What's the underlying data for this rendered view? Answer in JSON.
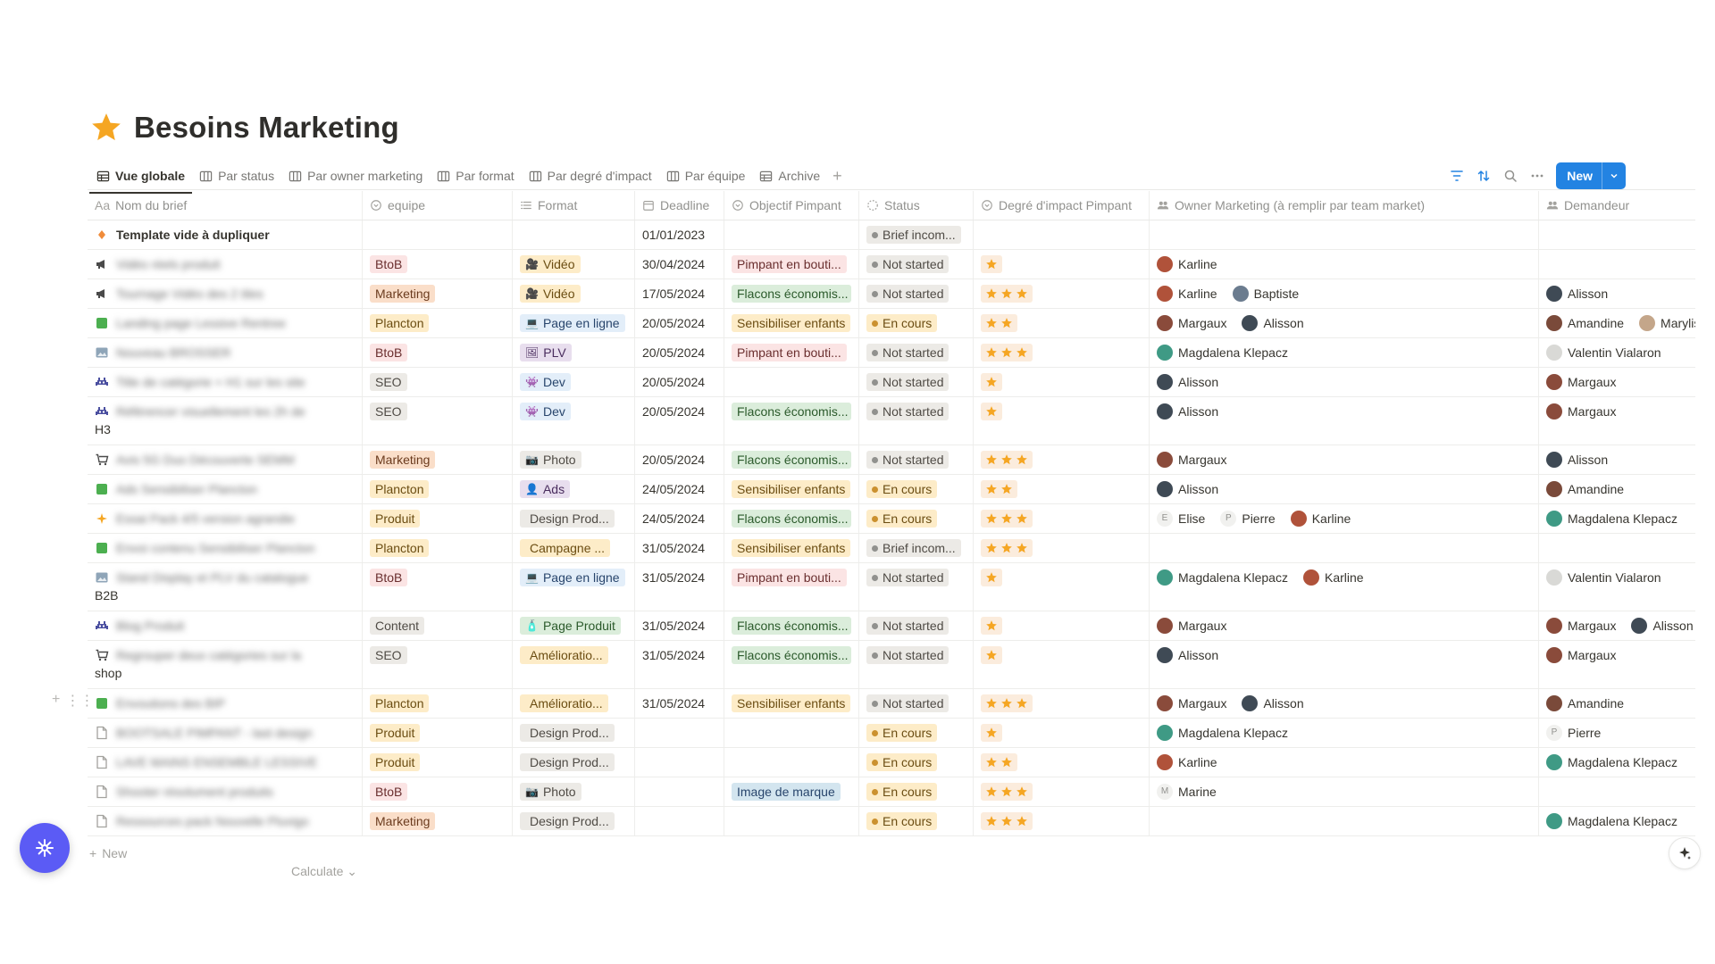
{
  "page": {
    "title": "Besoins Marketing",
    "icon": "star-icon"
  },
  "tabs": [
    {
      "label": "Vue globale",
      "icon": "table-icon",
      "active": true
    },
    {
      "label": "Par status",
      "icon": "board-icon"
    },
    {
      "label": "Par owner marketing",
      "icon": "board-icon"
    },
    {
      "label": "Par format",
      "icon": "board-icon"
    },
    {
      "label": "Par degré d'impact",
      "icon": "board-icon"
    },
    {
      "label": "Par équipe",
      "icon": "board-icon"
    },
    {
      "label": "Archive",
      "icon": "table-icon"
    }
  ],
  "toolbar": {
    "new_label": "New",
    "icons": [
      "filter-icon",
      "sort-icon",
      "search-icon",
      "more-icon"
    ]
  },
  "columns": [
    {
      "label": "Nom du brief",
      "icon": "title-icon",
      "prefix": "Aa"
    },
    {
      "label": "equipe",
      "icon": "select-icon"
    },
    {
      "label": "Format",
      "icon": "list-icon"
    },
    {
      "label": "Deadline",
      "icon": "calendar-icon"
    },
    {
      "label": "Objectif Pimpant",
      "icon": "select-icon"
    },
    {
      "label": "Status",
      "icon": "status-icon"
    },
    {
      "label": "Degré d'impact Pimpant",
      "icon": "select-icon"
    },
    {
      "label": "Owner Marketing (à remplir par team market)",
      "icon": "people-icon"
    },
    {
      "label": "Demandeur",
      "icon": "people-icon"
    }
  ],
  "colors": {
    "accent": "#2383e2",
    "fab": "#5b5bf5",
    "star": "#f5a623"
  },
  "tag_colors": {
    "BtoB": {
      "bg": "#fbe4e4",
      "fg": "#6a2f2f"
    },
    "Marketing": {
      "bg": "#fadec9",
      "fg": "#6b3b1e"
    },
    "Plancton": {
      "bg": "#fdecc8",
      "fg": "#6b4d12"
    },
    "SEO": {
      "bg": "#eceae6",
      "fg": "#4f4b45"
    },
    "Produit": {
      "bg": "#fdecc8",
      "fg": "#6b4d12"
    },
    "Content": {
      "bg": "#eceae6",
      "fg": "#4f4b45"
    },
    "Vidéo": {
      "bg": "#fdecc8",
      "fg": "#6b4d12"
    },
    "Page en ligne": {
      "bg": "#e3eef9",
      "fg": "#28456c"
    },
    "PLV": {
      "bg": "#e8deee",
      "fg": "#4a2d5e"
    },
    "Dev": {
      "bg": "#e3eef9",
      "fg": "#28456c"
    },
    "Photo": {
      "bg": "#eceae6",
      "fg": "#4f4b45"
    },
    "Ads": {
      "bg": "#e8deee",
      "fg": "#4a2d5e"
    },
    "Design Prod...": {
      "bg": "#eceae6",
      "fg": "#4f4b45"
    },
    "Campagne ...": {
      "bg": "#fdecc8",
      "fg": "#6b4d12"
    },
    "Page Produit": {
      "bg": "#dbeddb",
      "fg": "#2b5a2b"
    },
    "Amélioratio...": {
      "bg": "#fdecc8",
      "fg": "#6b4d12"
    },
    "Pimpant en bouti...": {
      "bg": "#fbe4e4",
      "fg": "#6a2f2f"
    },
    "Flacons économis...": {
      "bg": "#dbeddb",
      "fg": "#2b5a2b"
    },
    "Sensibiliser enfants": {
      "bg": "#fdecc8",
      "fg": "#6b4d12"
    },
    "Image de marque": {
      "bg": "#d3e5ef",
      "fg": "#28456c"
    },
    "Brief incom...": {
      "bg": "#eceae6",
      "fg": "#4f4b45",
      "dot": "#91918e"
    },
    "Not started": {
      "bg": "#eceae6",
      "fg": "#4f4b45",
      "dot": "#91918e"
    },
    "En cours": {
      "bg": "#fdecc8",
      "fg": "#6b4d12",
      "dot": "#cb912f"
    }
  },
  "format_emoji": {
    "Vidéo": "🎥",
    "Page en ligne": "💻",
    "PLV": "🖼",
    "Dev": "👾",
    "Photo": "📷",
    "Ads": "👤",
    "Design Prod...": "🖼",
    "Campagne ...": "🔥",
    "Page Produit": "🧴",
    "Amélioratio...": "⭐"
  },
  "rows": [
    {
      "icon": "diamond-icon",
      "name": "Template vide à dupliquer",
      "blur": false,
      "extra": "",
      "equipe": "",
      "format": "",
      "deadline": "01/01/2023",
      "objectif": "",
      "status": "Brief incom...",
      "stars": 0,
      "owners": [],
      "demandeurs": []
    },
    {
      "icon": "megaphone-icon",
      "name": "Vidéo réels produit",
      "blur": true,
      "extra": "",
      "equipe": "BtoB",
      "format": "Vidéo",
      "deadline": "30/04/2024",
      "objectif": "Pimpant en bouti...",
      "status": "Not started",
      "stars": 1,
      "owners": [
        "Karline"
      ],
      "demandeurs": []
    },
    {
      "icon": "megaphone-icon",
      "name": "Tournage Vidéo des 2 tiles",
      "blur": true,
      "extra": "",
      "equipe": "Marketing",
      "format": "Vidéo",
      "deadline": "17/05/2024",
      "objectif": "Flacons économis...",
      "status": "Not started",
      "stars": 3,
      "owners": [
        "Karline",
        "Baptiste"
      ],
      "demandeurs": [
        "Alisson"
      ]
    },
    {
      "icon": "green-square-icon",
      "name": "Landing page Lessive Rentree",
      "blur": true,
      "extra": "",
      "equipe": "Plancton",
      "format": "Page en ligne",
      "deadline": "20/05/2024",
      "objectif": "Sensibiliser enfants",
      "status": "En cours",
      "stars": 2,
      "owners": [
        "Margaux",
        "Alisson"
      ],
      "demandeurs": [
        "Amandine",
        "Marylise"
      ]
    },
    {
      "icon": "picture-icon",
      "name": "Nouveau BROSSER",
      "blur": true,
      "extra": "",
      "equipe": "BtoB",
      "format": "PLV",
      "deadline": "20/05/2024",
      "objectif": "Pimpant en bouti...",
      "status": "Not started",
      "stars": 3,
      "owners": [
        "Magdalena Klepacz"
      ],
      "demandeurs": [
        "Valentin Vialaron"
      ]
    },
    {
      "icon": "alien-icon",
      "name": "Title de catégorie + H1 sur les site",
      "blur": true,
      "extra": "",
      "equipe": "SEO",
      "format": "Dev",
      "deadline": "20/05/2024",
      "objectif": "",
      "status": "Not started",
      "stars": 1,
      "owners": [
        "Alisson"
      ],
      "demandeurs": [
        "Margaux"
      ]
    },
    {
      "icon": "alien-icon",
      "name": "Référencer visuellement les 2h de",
      "blur": true,
      "extra": "H3",
      "equipe": "SEO",
      "format": "Dev",
      "deadline": "20/05/2024",
      "objectif": "Flacons économis...",
      "status": "Not started",
      "stars": 1,
      "owners": [
        "Alisson"
      ],
      "demandeurs": [
        "Margaux"
      ]
    },
    {
      "icon": "cart-icon",
      "name": "Avis 5G Duo Découverte SEMM",
      "blur": true,
      "extra": "",
      "equipe": "Marketing",
      "format": "Photo",
      "deadline": "20/05/2024",
      "objectif": "Flacons économis...",
      "status": "Not started",
      "stars": 3,
      "owners": [
        "Margaux"
      ],
      "demandeurs": [
        "Alisson"
      ]
    },
    {
      "icon": "green-square-icon",
      "name": "Ads Sensibiliser Plancton",
      "blur": true,
      "extra": "",
      "equipe": "Plancton",
      "format": "Ads",
      "deadline": "24/05/2024",
      "objectif": "Sensibiliser enfants",
      "status": "En cours",
      "stars": 2,
      "owners": [
        "Alisson"
      ],
      "demandeurs": [
        "Amandine"
      ]
    },
    {
      "icon": "sparkle-icon",
      "name": "Essai Pack 4/5 version agrandie",
      "blur": true,
      "extra": "",
      "equipe": "Produit",
      "format": "Design Prod...",
      "deadline": "24/05/2024",
      "objectif": "Flacons économis...",
      "status": "En cours",
      "stars": 3,
      "owners": [
        "Elise",
        "Pierre",
        "Karline"
      ],
      "demandeurs": [
        "Magdalena Klepacz"
      ]
    },
    {
      "icon": "green-square-icon",
      "name": "Envoi contenu Sensibiliser Plancton",
      "blur": true,
      "extra": "",
      "equipe": "Plancton",
      "format": "Campagne ...",
      "deadline": "31/05/2024",
      "objectif": "Sensibiliser enfants",
      "status": "Brief incom...",
      "stars": 3,
      "owners": [],
      "demandeurs": []
    },
    {
      "icon": "picture-icon",
      "name": "Stand Display et PLV du catalogue",
      "blur": true,
      "extra": "B2B",
      "equipe": "BtoB",
      "format": "Page en ligne",
      "deadline": "31/05/2024",
      "objectif": "Pimpant en bouti...",
      "status": "Not started",
      "stars": 1,
      "owners": [
        "Magdalena Klepacz",
        "Karline"
      ],
      "demandeurs": [
        "Valentin Vialaron"
      ]
    },
    {
      "icon": "alien-icon",
      "name": "Blog Produit",
      "blur": true,
      "extra": "",
      "equipe": "Content",
      "format": "Page Produit",
      "deadline": "31/05/2024",
      "objectif": "Flacons économis...",
      "status": "Not started",
      "stars": 1,
      "owners": [
        "Margaux"
      ],
      "demandeurs": [
        "Margaux",
        "Alisson"
      ]
    },
    {
      "icon": "cart-icon",
      "name": "Regrouper deux catégories sur la",
      "blur": true,
      "extra": "shop",
      "equipe": "SEO",
      "format": "Amélioratio...",
      "deadline": "31/05/2024",
      "objectif": "Flacons économis...",
      "status": "Not started",
      "stars": 1,
      "owners": [
        "Alisson"
      ],
      "demandeurs": [
        "Margaux"
      ]
    },
    {
      "icon": "green-square-icon",
      "name": "Envoutions des BIP",
      "blur": true,
      "extra": "",
      "equipe": "Plancton",
      "format": "Amélioratio...",
      "deadline": "31/05/2024",
      "objectif": "Sensibiliser enfants",
      "status": "Not started",
      "stars": 3,
      "owners": [
        "Margaux",
        "Alisson"
      ],
      "demandeurs": [
        "Amandine"
      ]
    },
    {
      "icon": "page-icon",
      "name": "BOOTSALE PIMPANT - last design",
      "blur": true,
      "extra": "",
      "equipe": "Produit",
      "format": "Design Prod...",
      "deadline": "",
      "objectif": "",
      "status": "En cours",
      "stars": 1,
      "owners": [
        "Magdalena Klepacz"
      ],
      "demandeurs": [
        "Pierre"
      ]
    },
    {
      "icon": "page-icon",
      "name": "LAVE MAINS ENSEMBLE LESSIVE",
      "blur": true,
      "extra": "",
      "equipe": "Produit",
      "format": "Design Prod...",
      "deadline": "",
      "objectif": "",
      "status": "En cours",
      "stars": 2,
      "owners": [
        "Karline"
      ],
      "demandeurs": [
        "Magdalena Klepacz"
      ]
    },
    {
      "icon": "page-icon",
      "name": "Shooter résolument produits",
      "blur": true,
      "extra": "",
      "equipe": "BtoB",
      "format": "Photo",
      "deadline": "",
      "objectif": "Image de marque",
      "status": "En cours",
      "stars": 3,
      "owners": [
        "Marine"
      ],
      "demandeurs": []
    },
    {
      "icon": "page-icon",
      "name": "Ressources pack Nouvelle Pluvigo",
      "blur": true,
      "extra": "",
      "equipe": "Marketing",
      "format": "Design Prod...",
      "deadline": "",
      "objectif": "",
      "status": "En cours",
      "stars": 3,
      "owners": [],
      "demandeurs": [
        "Magdalena Klepacz"
      ]
    }
  ],
  "people": {
    "Karline": {
      "color": "#b0523a"
    },
    "Baptiste": {
      "color": "#6b7c8f"
    },
    "Alisson": {
      "color": "#3f4a55"
    },
    "Margaux": {
      "color": "#8a4b3b"
    },
    "Amandine": {
      "color": "#7a4a3a"
    },
    "Marylise": {
      "color": "#c4a68a"
    },
    "Magdalena Klepacz": {
      "color": "#3f9a85"
    },
    "Valentin Vialaron": {
      "color": "#d9d9d6"
    },
    "Elise": {
      "letter": "E"
    },
    "Pierre": {
      "letter": "P"
    },
    "Marine": {
      "letter": "M"
    }
  },
  "footer": {
    "new_row_label": "New",
    "calculate_label": "Calculate"
  }
}
